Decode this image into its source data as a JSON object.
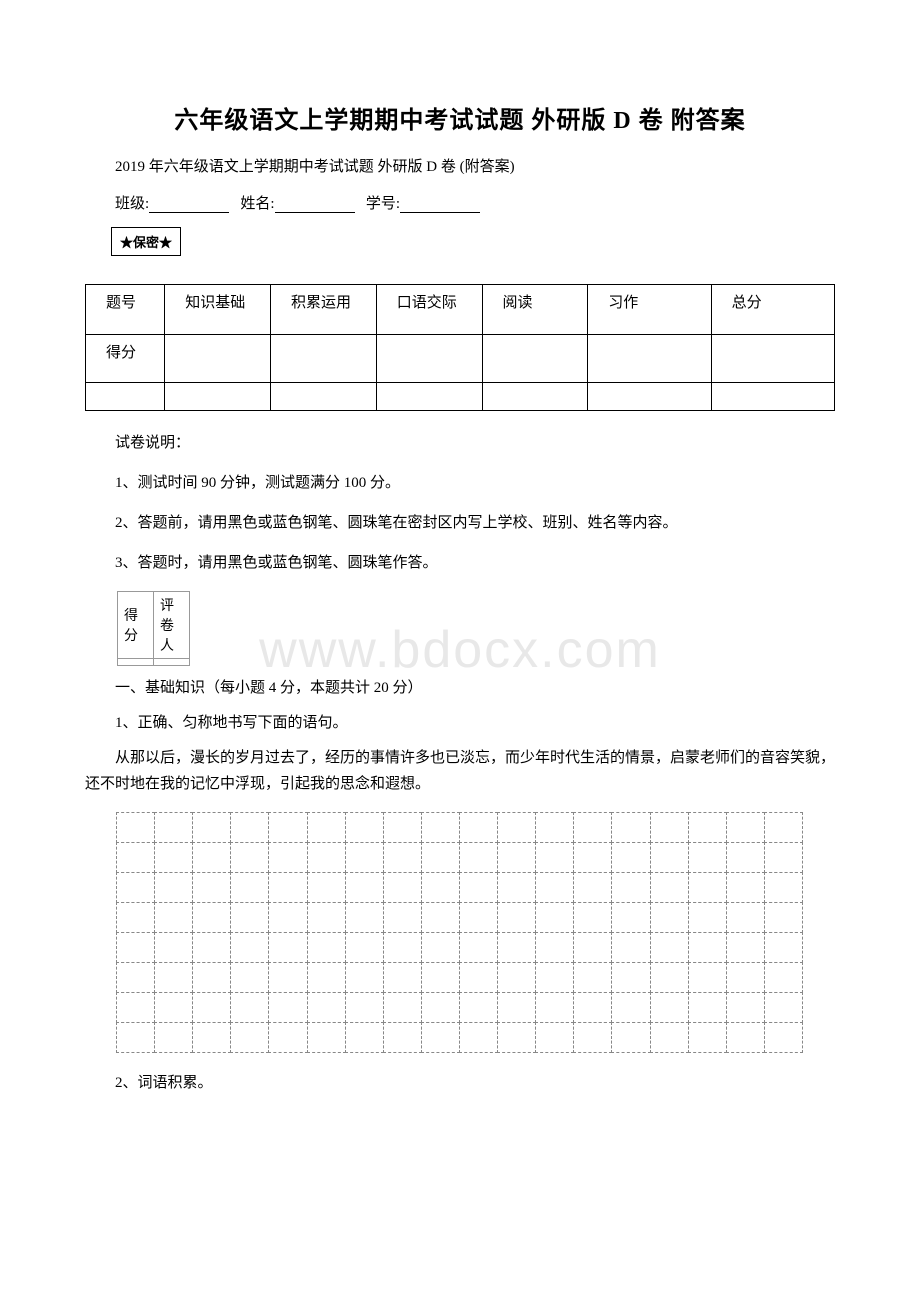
{
  "title": "六年级语文上学期期中考试试题 外研版 D 卷 附答案",
  "subtitle": "2019 年六年级语文上学期期中考试试题 外研版 D 卷 (附答案)",
  "info": {
    "class_label": "班级:",
    "name_label": "姓名:",
    "id_label": "学号:"
  },
  "secret_badge": "★保密★",
  "score_table": {
    "row1": [
      "题号",
      "知识基础",
      "积累运用",
      "口语交际",
      "阅读",
      "习作",
      "总分"
    ],
    "row2_label": "得分"
  },
  "instructions": {
    "heading": "试卷说明：",
    "line1": "1、测试时间 90 分钟，测试题满分 100 分。",
    "line2": "2、答题前，请用黑色或蓝色钢笔、圆珠笔在密封区内写上学校、班别、姓名等内容。",
    "line3": "3、答题时，请用黑色或蓝色钢笔、圆珠笔作答。"
  },
  "grader_table": {
    "score_label": "得分",
    "reviewer_label": "评卷人"
  },
  "section1": {
    "title": "一、基础知识（每小题 4 分，本题共计 20 分）",
    "q1": "1、正确、匀称地书写下面的语句。",
    "passage": "从那以后，漫长的岁月过去了，经历的事情许多也已淡忘，而少年时代生活的情景，启蒙老师们的音容笑貌，还不时地在我的记忆中浮现，引起我的思念和遐想。",
    "q2": "2、词语积累。"
  },
  "watermark": "www.bdocx.com",
  "grid": {
    "rows": 8,
    "cols": 18
  }
}
